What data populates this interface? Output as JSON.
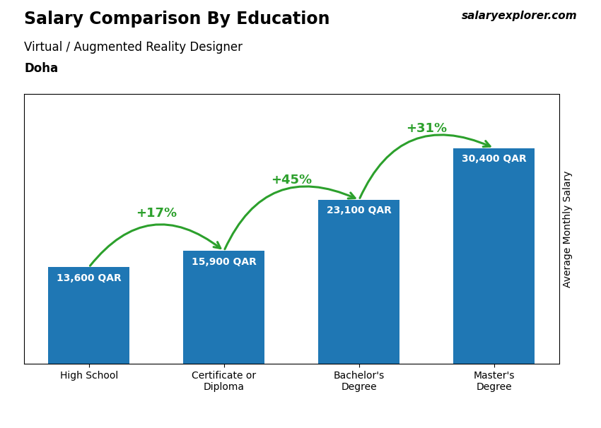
{
  "chart_data": {
    "type": "bar",
    "title": "Salary Comparison By Education",
    "subtitle": "Virtual / Augmented Reality Designer",
    "y_label": "Average Monthly Salary",
    "categories": [
      "High School",
      "Certificate or\nDiploma",
      "Bachelor's\nDegree",
      "Master's\nDegree"
    ],
    "values": [
      13600,
      15900,
      23100,
      30400
    ],
    "value_labels": [
      "13,600 QAR",
      "15,900 QAR",
      "23,100 QAR",
      "30,400 QAR"
    ],
    "data_labels": true,
    "ylim": [
      0,
      38000
    ],
    "tick_labels": "x",
    "grid": false,
    "annotations": [
      {
        "text": "Doha"
      },
      {
        "text": "salaryexplorer.com"
      },
      {
        "text": "+17%",
        "from": "High School",
        "to": "Certificate or\nDiploma",
        "color": "#2ca02c"
      },
      {
        "text": "+45%",
        "from": "Certificate or\nDiploma",
        "to": "Bachelor's\nDegree",
        "color": "#2ca02c"
      },
      {
        "text": "+31%",
        "from": "Bachelor's\nDegree",
        "to": "Master's\nDegree",
        "color": "#2ca02c"
      }
    ]
  }
}
